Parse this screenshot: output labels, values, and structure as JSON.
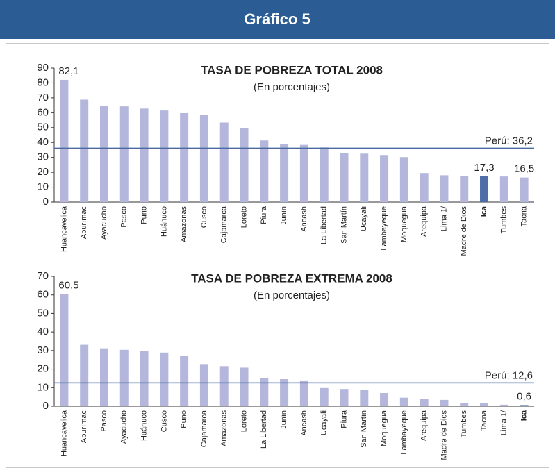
{
  "header": {
    "title": "Gráfico 5"
  },
  "chart_data": [
    {
      "type": "bar",
      "title": "TASA DE POBREZA TOTAL 2008",
      "subtitle": "(En porcentajes)",
      "categories": [
        "Huancavelica",
        "Apurímac",
        "Ayacucho",
        "Pasco",
        "Puno",
        "Huánuco",
        "Amazonas",
        "Cusco",
        "Cajamarca",
        "Loreto",
        "Piura",
        "Junín",
        "Ancash",
        "La Libertad",
        "San Martín",
        "Ucayali",
        "Lambayeque",
        "Moquegua",
        "Arequipa",
        "Lima 1/",
        "Madre de Dios",
        "Ica",
        "Tumbes",
        "Tacna"
      ],
      "values": [
        82.1,
        68.8,
        64.8,
        64.3,
        62.8,
        61.5,
        59.7,
        58.4,
        53.4,
        49.8,
        41.4,
        38.9,
        38.4,
        36.7,
        33.1,
        32.5,
        31.6,
        30.2,
        19.5,
        18.0,
        17.4,
        17.3,
        17.2,
        16.5
      ],
      "value_labels": [
        "82,1",
        null,
        null,
        null,
        null,
        null,
        null,
        null,
        null,
        null,
        null,
        null,
        null,
        null,
        null,
        null,
        null,
        null,
        null,
        null,
        null,
        "17,3",
        null,
        "16,5"
      ],
      "color": "#b4b6dc",
      "highlight": "Ica",
      "highlight_color": "#4f6ea8",
      "reference": {
        "value": 36.2,
        "label": "Perú: 36,2",
        "color": "#4a6aa0"
      },
      "ylim": [
        0,
        90
      ],
      "yticks": [
        0,
        10,
        20,
        30,
        40,
        50,
        60,
        70,
        80,
        90
      ]
    },
    {
      "type": "bar",
      "title": "TASA DE POBREZA EXTREMA 2008",
      "subtitle": "(En porcentajes)",
      "categories": [
        "Huancavelica",
        "Apurímac",
        "Pasco",
        "Ayacucho",
        "Huánuco",
        "Cusco",
        "Puno",
        "Cajamarca",
        "Amazonas",
        "Loreto",
        "La Libertad",
        "Junín",
        "Ancash",
        "Ucayali",
        "Piura",
        "San Martín",
        "Moquegua",
        "Lambayeque",
        "Arequipa",
        "Madre de Dios",
        "Tumbes",
        "Tacna",
        "Lima 1/",
        "Ica"
      ],
      "values": [
        60.5,
        33.1,
        31.2,
        30.4,
        29.6,
        28.9,
        27.2,
        22.7,
        21.6,
        20.8,
        15.0,
        14.6,
        13.9,
        9.8,
        9.3,
        8.8,
        7.1,
        4.6,
        3.8,
        3.4,
        1.6,
        1.5,
        0.8,
        0.6
      ],
      "value_labels": [
        "60,5",
        null,
        null,
        null,
        null,
        null,
        null,
        null,
        null,
        null,
        null,
        null,
        null,
        null,
        null,
        null,
        null,
        null,
        null,
        null,
        null,
        null,
        null,
        "0,6"
      ],
      "color": "#b4b6dc",
      "highlight": "Ica",
      "highlight_color": "#4f6ea8",
      "reference": {
        "value": 12.6,
        "label": "Perú: 12,6",
        "color": "#4a6aa0"
      },
      "ylim": [
        0,
        70
      ],
      "yticks": [
        0,
        10,
        20,
        30,
        40,
        50,
        60,
        70
      ]
    }
  ]
}
